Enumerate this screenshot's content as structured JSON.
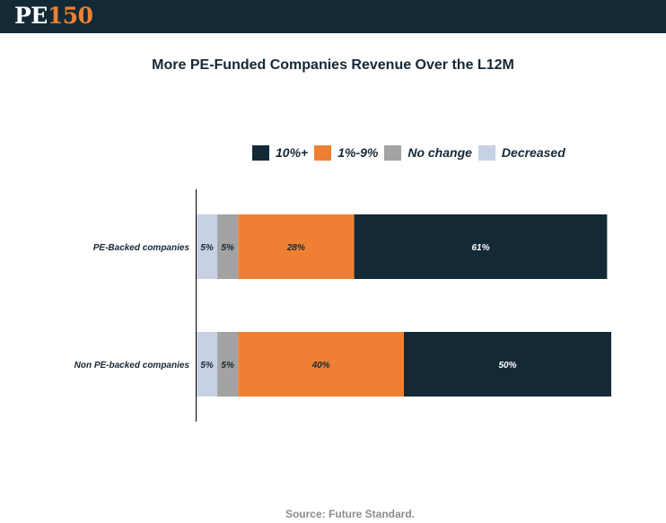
{
  "header": {
    "logo_pe": "PE",
    "logo_num": "150"
  },
  "chart_data": {
    "type": "bar",
    "orientation": "horizontal",
    "stacked": true,
    "title": "More PE-Funded Companies Revenue Over the L12M",
    "categories": [
      "PE-Backed companies",
      "Non PE-backed companies"
    ],
    "series": [
      {
        "name": "Decreased",
        "color": "#c7d1e3",
        "values": [
          5,
          5
        ],
        "labels": [
          "5%",
          "5%"
        ]
      },
      {
        "name": "No change",
        "color": "#a3a3a3",
        "values": [
          5,
          5
        ],
        "labels": [
          "5%",
          "5%"
        ]
      },
      {
        "name": "1%-9%",
        "color": "#ef8033",
        "values": [
          28,
          40
        ],
        "labels": [
          "28%",
          "40%"
        ]
      },
      {
        "name": "10%+",
        "color": "#132a36",
        "values": [
          61,
          50
        ],
        "labels": [
          "61%",
          "50%"
        ]
      }
    ],
    "legend": {
      "position": "top",
      "order": [
        "10%+",
        "1%-9%",
        "No change",
        "Decreased"
      ]
    },
    "xlim": [
      0,
      100
    ],
    "grid": false
  },
  "source": {
    "label": "Source:",
    "text": "Future Standard."
  }
}
